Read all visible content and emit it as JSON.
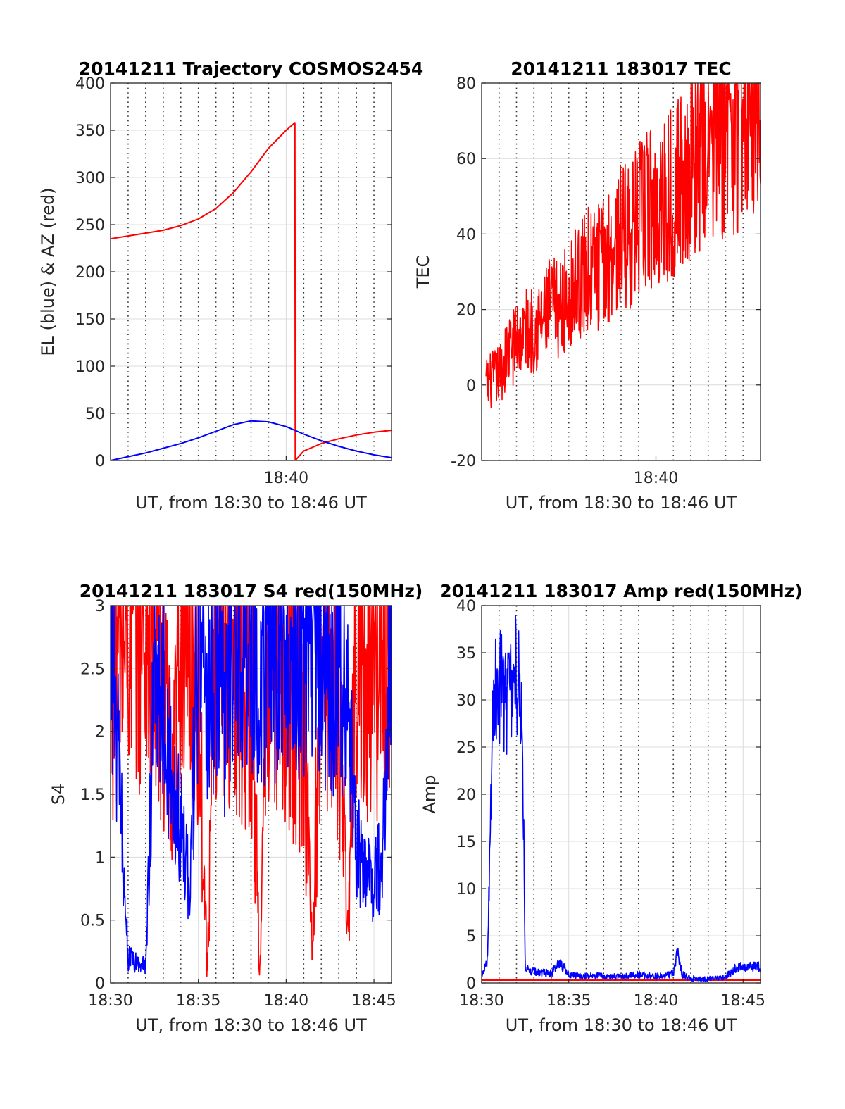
{
  "colors": {
    "az": "#ff0000",
    "el": "#0000ff",
    "tec": "#ff0000",
    "s4_red": "#ff0000",
    "s4_blue": "#0000ff",
    "amp_red": "#ff0000",
    "amp_blue": "#0000ff"
  },
  "chart_data": [
    {
      "type": "line",
      "title": "20141211 Trajectory COSMOS2454",
      "xlabel": "UT, from 18:30 to 18:46 UT",
      "ylabel": "EL (blue) & AZ (red)",
      "xlim": [
        "18:30",
        "18:46"
      ],
      "ylim": [
        0,
        400
      ],
      "yticks": [
        "0",
        "50",
        "100",
        "150",
        "200",
        "250",
        "300",
        "350",
        "400"
      ],
      "xticks": [
        {
          "t": "18:40",
          "label": "18:40"
        }
      ],
      "grid": true,
      "minor_grid_x": [
        "18:31",
        "18:32",
        "18:33",
        "18:34",
        "18:35",
        "18:36",
        "18:37",
        "18:38",
        "18:39",
        "18:41",
        "18:42",
        "18:43",
        "18:44",
        "18:45"
      ],
      "series": [
        {
          "color_key": "az",
          "points": [
            [
              "18:30:00",
              235
            ],
            [
              "18:31:00",
              238
            ],
            [
              "18:32:00",
              241
            ],
            [
              "18:33:00",
              244
            ],
            [
              "18:34:00",
              249
            ],
            [
              "18:35:00",
              256
            ],
            [
              "18:36:00",
              267
            ],
            [
              "18:37:00",
              284
            ],
            [
              "18:38:00",
              306
            ],
            [
              "18:39:00",
              331
            ],
            [
              "18:40:00",
              350
            ],
            [
              "18:40:30",
              358
            ],
            [
              "18:40:31",
              0
            ],
            [
              "18:41:00",
              10
            ],
            [
              "18:42:00",
              18
            ],
            [
              "18:43:00",
              23
            ],
            [
              "18:44:00",
              27
            ],
            [
              "18:45:00",
              30
            ],
            [
              "18:46:00",
              32
            ]
          ]
        },
        {
          "color_key": "el",
          "points": [
            [
              "18:30:00",
              0
            ],
            [
              "18:31:00",
              4
            ],
            [
              "18:32:00",
              8
            ],
            [
              "18:33:00",
              13
            ],
            [
              "18:34:00",
              18
            ],
            [
              "18:35:00",
              24
            ],
            [
              "18:36:00",
              31
            ],
            [
              "18:37:00",
              38
            ],
            [
              "18:38:00",
              42
            ],
            [
              "18:39:00",
              41
            ],
            [
              "18:40:00",
              36
            ],
            [
              "18:41:00",
              28
            ],
            [
              "18:42:00",
              21
            ],
            [
              "18:43:00",
              15
            ],
            [
              "18:44:00",
              10
            ],
            [
              "18:45:00",
              6
            ],
            [
              "18:46:00",
              3
            ]
          ]
        }
      ]
    },
    {
      "type": "line",
      "title": "20141211 183017 TEC",
      "xlabel": "UT, from 18:30 to 18:46 UT",
      "ylabel": "TEC",
      "xlim": [
        "18:30",
        "18:46"
      ],
      "ylim": [
        -20,
        80
      ],
      "yticks": [
        "-20",
        "0",
        "20",
        "40",
        "60",
        "80"
      ],
      "xticks": [
        {
          "t": "18:40",
          "label": "18:40"
        }
      ],
      "grid": true,
      "minor_grid_x": [
        "18:31",
        "18:32",
        "18:33",
        "18:34",
        "18:35",
        "18:36",
        "18:37",
        "18:38",
        "18:39",
        "18:41",
        "18:42",
        "18:43",
        "18:44",
        "18:45"
      ],
      "series": [
        {
          "color_key": "tec",
          "noise": 0.8,
          "points": [
            [
              "18:30:15",
              0
            ],
            [
              "18:31:00",
              3
            ],
            [
              "18:31:30",
              8
            ],
            [
              "18:32:00",
              12
            ],
            [
              "18:32:30",
              14
            ],
            [
              "18:33:00",
              15
            ],
            [
              "18:33:30",
              17
            ],
            [
              "18:34:00",
              21
            ],
            [
              "18:34:30",
              20
            ],
            [
              "18:35:00",
              24
            ],
            [
              "18:35:30",
              27
            ],
            [
              "18:36:00",
              30
            ],
            [
              "18:36:30",
              31
            ],
            [
              "18:37:00",
              32
            ],
            [
              "18:37:30",
              36
            ],
            [
              "18:38:00",
              39
            ],
            [
              "18:38:30",
              40
            ],
            [
              "18:39:00",
              43
            ],
            [
              "18:39:30",
              47
            ],
            [
              "18:40:00",
              47
            ],
            [
              "18:40:30",
              49
            ],
            [
              "18:41:00",
              52
            ],
            [
              "18:41:30",
              54
            ],
            [
              "18:42:00",
              58
            ],
            [
              "18:42:30",
              61
            ],
            [
              "18:43:00",
              64
            ],
            [
              "18:43:30",
              66
            ],
            [
              "18:44:00",
              68
            ],
            [
              "18:44:30",
              68
            ],
            [
              "18:45:00",
              72
            ],
            [
              "18:45:30",
              75
            ],
            [
              "18:46:00",
              78
            ]
          ]
        }
      ]
    },
    {
      "type": "line",
      "title": "20141211 183017 S4 red(150MHz)",
      "xlabel": "UT, from 18:30 to 18:46 UT",
      "ylabel": "S4",
      "xlim": [
        "18:30",
        "18:46"
      ],
      "ylim": [
        0,
        3
      ],
      "yticks": [
        "0",
        "0.5",
        "1",
        "1.5",
        "2",
        "2.5",
        "3"
      ],
      "xticks": [
        {
          "t": "18:30",
          "label": "18:30"
        },
        {
          "t": "18:35",
          "label": "18:35"
        },
        {
          "t": "18:40",
          "label": "18:40"
        },
        {
          "t": "18:45",
          "label": "18:45"
        }
      ],
      "grid": true,
      "minor_grid_x": [
        "18:31",
        "18:32",
        "18:33",
        "18:34",
        "18:36",
        "18:37",
        "18:38",
        "18:39",
        "18:41",
        "18:42",
        "18:43",
        "18:44"
      ],
      "series": [
        {
          "color_key": "s4_red",
          "noise": 1.4,
          "points": [
            [
              "18:30:00",
              2.6
            ],
            [
              "18:31:00",
              2.9
            ],
            [
              "18:32:00",
              2.8
            ],
            [
              "18:33:00",
              2.5
            ],
            [
              "18:33:30",
              1.2
            ],
            [
              "18:34:00",
              2.9
            ],
            [
              "18:35:00",
              2.4
            ],
            [
              "18:35:30",
              0.1
            ],
            [
              "18:36:00",
              2.8
            ],
            [
              "18:37:00",
              2.7
            ],
            [
              "18:38:00",
              2.5
            ],
            [
              "18:38:30",
              0.1
            ],
            [
              "18:39:00",
              2.7
            ],
            [
              "18:40:00",
              2.6
            ],
            [
              "18:41:00",
              2.2
            ],
            [
              "18:41:30",
              0.2
            ],
            [
              "18:42:00",
              2.9
            ],
            [
              "18:43:00",
              2.3
            ],
            [
              "18:43:30",
              0.3
            ],
            [
              "18:44:00",
              2.8
            ],
            [
              "18:45:00",
              2.5
            ],
            [
              "18:46:00",
              2.9
            ]
          ]
        },
        {
          "color_key": "s4_blue",
          "noise": 1.0,
          "points": [
            [
              "18:30:00",
              2.7
            ],
            [
              "18:30:30",
              1.6
            ],
            [
              "18:31:00",
              0.2
            ],
            [
              "18:31:30",
              0.15
            ],
            [
              "18:32:00",
              0.15
            ],
            [
              "18:32:30",
              2.4
            ],
            [
              "18:33:00",
              2.5
            ],
            [
              "18:33:30",
              1.5
            ],
            [
              "18:34:00",
              1.2
            ],
            [
              "18:34:30",
              0.8
            ],
            [
              "18:35:00",
              2.7
            ],
            [
              "18:35:30",
              2.3
            ],
            [
              "18:36:00",
              2.6
            ],
            [
              "18:36:30",
              2.2
            ],
            [
              "18:37:00",
              2.9
            ],
            [
              "18:37:30",
              2.7
            ],
            [
              "18:38:00",
              2.8
            ],
            [
              "18:38:30",
              2.4
            ],
            [
              "18:39:00",
              2.9
            ],
            [
              "18:39:30",
              2.6
            ],
            [
              "18:40:00",
              2.7
            ],
            [
              "18:40:30",
              2.8
            ],
            [
              "18:41:00",
              2.5
            ],
            [
              "18:41:30",
              2.9
            ],
            [
              "18:42:00",
              2.6
            ],
            [
              "18:42:30",
              2.3
            ],
            [
              "18:43:00",
              2.7
            ],
            [
              "18:43:30",
              2.2
            ],
            [
              "18:44:00",
              1.1
            ],
            [
              "18:44:30",
              0.9
            ],
            [
              "18:45:00",
              0.8
            ],
            [
              "18:45:30",
              1.0
            ],
            [
              "18:46:00",
              2.7
            ]
          ]
        }
      ]
    },
    {
      "type": "line",
      "title": "20141211 183017 Amp red(150MHz)",
      "xlabel": "UT, from 18:30 to 18:46 UT",
      "ylabel": "Amp",
      "xlim": [
        "18:30",
        "18:46"
      ],
      "ylim": [
        0,
        40
      ],
      "yticks": [
        "0",
        "5",
        "10",
        "15",
        "20",
        "25",
        "30",
        "35",
        "40"
      ],
      "xticks": [
        {
          "t": "18:30",
          "label": "18:30"
        },
        {
          "t": "18:35",
          "label": "18:35"
        },
        {
          "t": "18:40",
          "label": "18:40"
        },
        {
          "t": "18:45",
          "label": "18:45"
        }
      ],
      "grid": true,
      "minor_grid_x": [
        "18:31",
        "18:32",
        "18:33",
        "18:34",
        "18:36",
        "18:37",
        "18:38",
        "18:39",
        "18:41",
        "18:42",
        "18:43",
        "18:44"
      ],
      "series": [
        {
          "color_key": "amp_red",
          "points": [
            [
              "18:30:00",
              0.3
            ],
            [
              "18:46:00",
              0.3
            ]
          ]
        },
        {
          "color_key": "amp_blue",
          "noise": 0.5,
          "points": [
            [
              "18:30:00",
              0.5
            ],
            [
              "18:30:20",
              2.5
            ],
            [
              "18:30:40",
              31
            ],
            [
              "18:31:00",
              32
            ],
            [
              "18:31:30",
              30
            ],
            [
              "18:32:00",
              33
            ],
            [
              "18:32:20",
              30
            ],
            [
              "18:32:30",
              1.5
            ],
            [
              "18:33:00",
              1.2
            ],
            [
              "18:34:00",
              1.0
            ],
            [
              "18:34:30",
              2.2
            ],
            [
              "18:35:00",
              0.8
            ],
            [
              "18:36:00",
              0.7
            ],
            [
              "18:37:00",
              0.8
            ],
            [
              "18:38:00",
              0.6
            ],
            [
              "18:39:00",
              0.9
            ],
            [
              "18:40:00",
              0.7
            ],
            [
              "18:40:30",
              0.8
            ],
            [
              "18:41:00",
              1.0
            ],
            [
              "18:41:15",
              3.3
            ],
            [
              "18:41:30",
              0.9
            ],
            [
              "18:42:00",
              0.5
            ],
            [
              "18:43:00",
              0.4
            ],
            [
              "18:44:00",
              0.6
            ],
            [
              "18:44:30",
              1.5
            ],
            [
              "18:45:00",
              1.8
            ],
            [
              "18:46:00",
              1.7
            ]
          ]
        }
      ]
    }
  ]
}
